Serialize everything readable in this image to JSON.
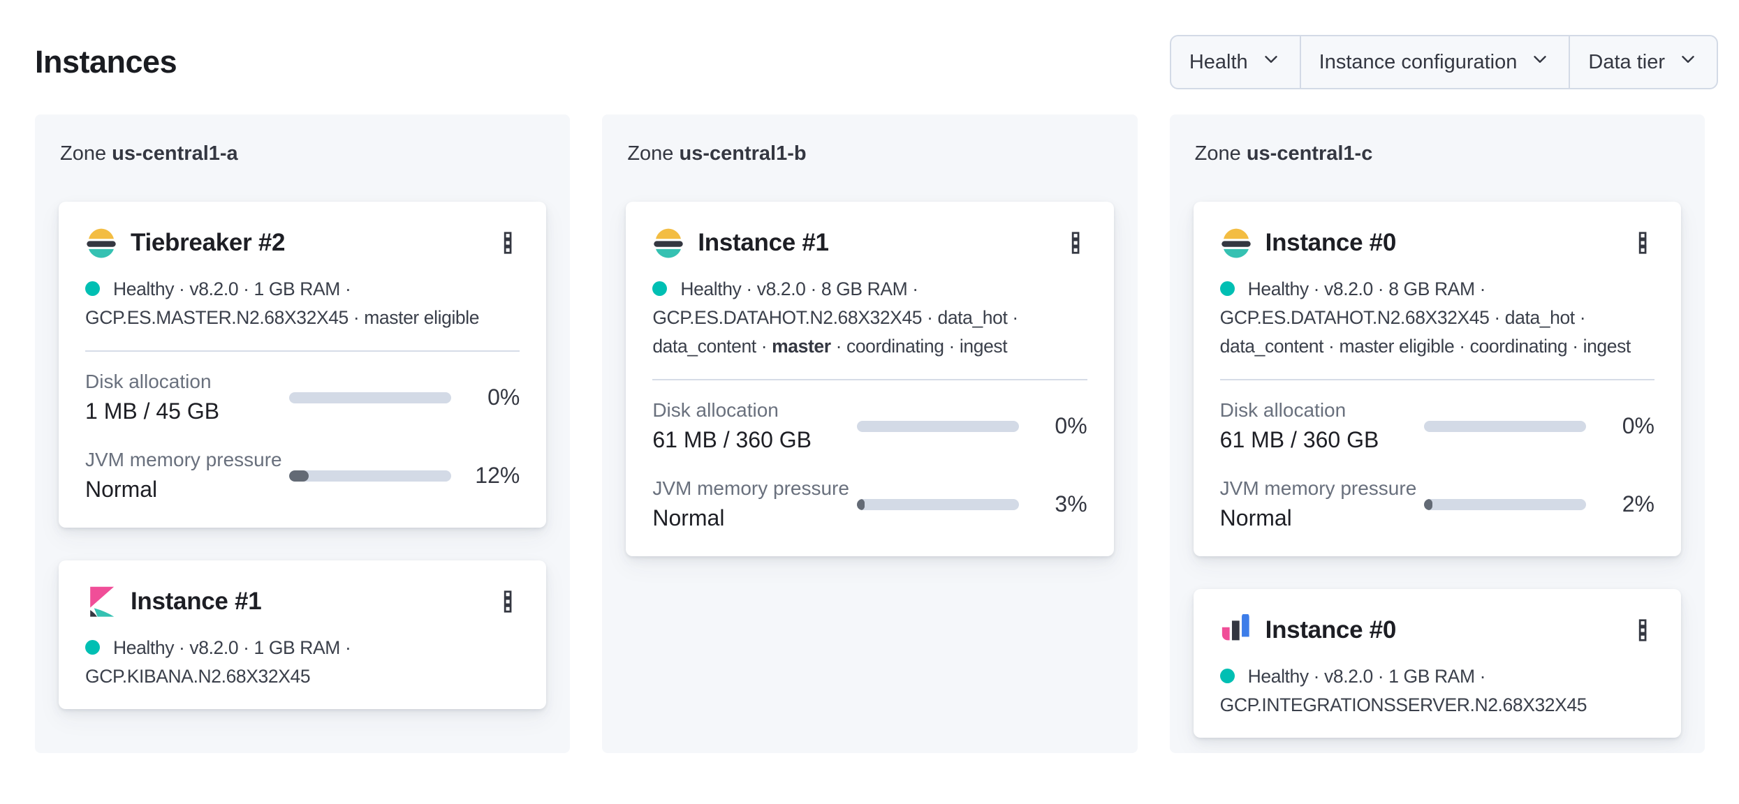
{
  "page": {
    "title": "Instances"
  },
  "filters": [
    {
      "label": "Health"
    },
    {
      "label": "Instance configuration"
    },
    {
      "label": "Data tier"
    }
  ],
  "colors": {
    "accent_teal": "#00bfb3",
    "accent_yellow": "#fec514",
    "accent_pink": "#f04e98",
    "accent_blue": "#3d7de9",
    "dark": "#343741",
    "panel_bg": "#f5f7fa",
    "bar_track": "#d3dae6",
    "bar_fill": "#636a75"
  },
  "zones": [
    {
      "label": "Zone",
      "name": "us-central1-a",
      "cards": [
        {
          "title": "Tiebreaker #2",
          "icon": "elasticsearch-logo",
          "health": {
            "line1": "Healthy · v8.2.0 · 1 GB RAM ·",
            "line2": "GCP.ES.MASTER.N2.68X32X45 · master eligible"
          },
          "metrics": [
            {
              "label": "Disk allocation",
              "value": "1 MB / 45 GB",
              "percent": 0,
              "percent_label": "0%"
            },
            {
              "label": "JVM memory pressure",
              "value": "Normal",
              "percent": 12,
              "percent_label": "12%"
            }
          ]
        },
        {
          "title": "Instance #1",
          "icon": "kibana-logo",
          "health": {
            "line1": "Healthy · v8.2.0 · 1 GB RAM ·",
            "line2": "GCP.KIBANA.N2.68X32X45"
          }
        }
      ]
    },
    {
      "label": "Zone",
      "name": "us-central1-b",
      "cards": [
        {
          "title": "Instance #1",
          "icon": "elasticsearch-logo",
          "health": {
            "line1": "Healthy · v8.2.0 · 8 GB RAM ·",
            "line2": "GCP.ES.DATAHOT.N2.68X32X45 · data_hot ·",
            "line3_pre": "data_content · ",
            "line3_bold": "master",
            "line3_post": " · coordinating · ingest"
          },
          "metrics": [
            {
              "label": "Disk allocation",
              "value": "61 MB / 360 GB",
              "percent": 0,
              "percent_label": "0%"
            },
            {
              "label": "JVM memory pressure",
              "value": "Normal",
              "percent": 3,
              "percent_label": "3%"
            }
          ]
        }
      ]
    },
    {
      "label": "Zone",
      "name": "us-central1-c",
      "cards": [
        {
          "title": "Instance #0",
          "icon": "elasticsearch-logo",
          "health": {
            "line1": "Healthy · v8.2.0 · 8 GB RAM ·",
            "line2": "GCP.ES.DATAHOT.N2.68X32X45 · data_hot ·",
            "line3_pre": "data_content · master eligible · coordinating · ingest",
            "line3_bold": "",
            "line3_post": ""
          },
          "metrics": [
            {
              "label": "Disk allocation",
              "value": "61 MB / 360 GB",
              "percent": 0,
              "percent_label": "0%"
            },
            {
              "label": "JVM memory pressure",
              "value": "Normal",
              "percent": 2,
              "percent_label": "2%"
            }
          ]
        },
        {
          "title": "Instance #0",
          "icon": "integrations-server-logo",
          "health": {
            "line1": "Healthy · v8.2.0 · 1 GB RAM ·",
            "line2": "GCP.INTEGRATIONSSERVER.N2.68X32X45"
          }
        }
      ]
    }
  ]
}
